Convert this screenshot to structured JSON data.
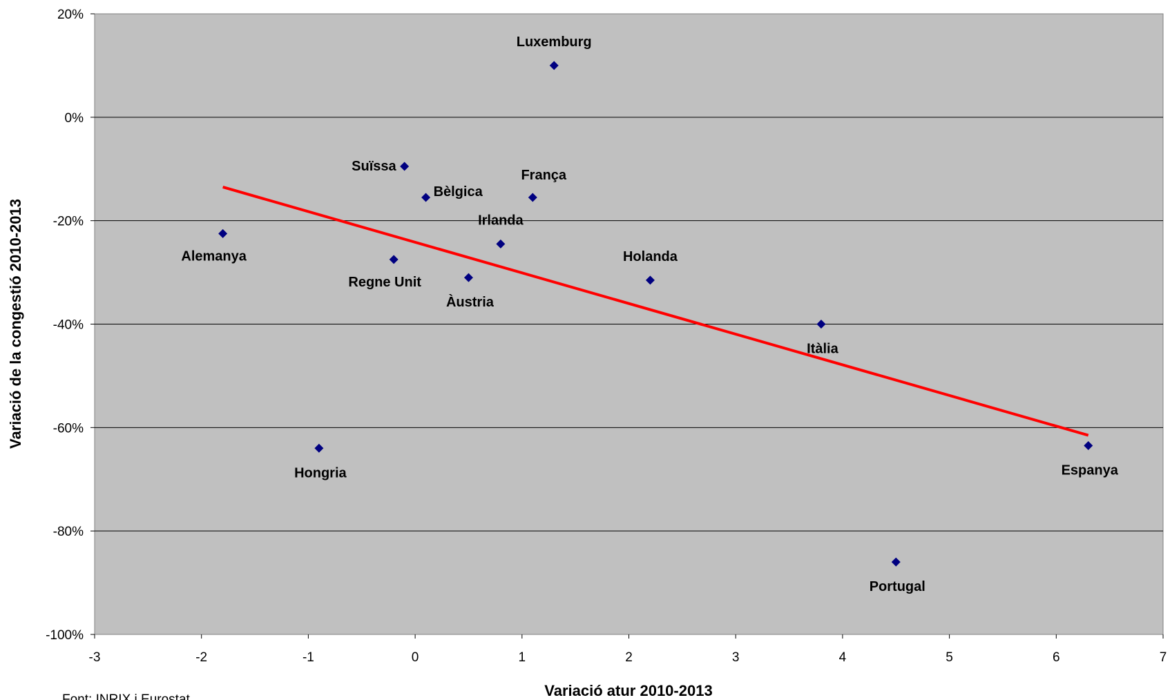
{
  "chart_data": {
    "type": "scatter",
    "xlabel": "Variació atur 2010-2013",
    "ylabel": "Variació de la congestió 2010-2013",
    "xlim": [
      -3,
      7
    ],
    "ylim": [
      -100,
      20
    ],
    "x_ticks": [
      -3,
      -2,
      -1,
      0,
      1,
      2,
      3,
      4,
      5,
      6,
      7
    ],
    "y_ticks": [
      20,
      0,
      -20,
      -40,
      -60,
      -80,
      -100
    ],
    "y_tick_labels": [
      "20%",
      "0%",
      "-20%",
      "-40%",
      "-60%",
      "-80%",
      "-100%"
    ],
    "grid": "horizontal",
    "plot_background": "#c0c0c0",
    "marker_color": "#000080",
    "trendline_color": "#ff0000",
    "points": [
      {
        "label": "Luxemburg",
        "x": 1.3,
        "y": 10
      },
      {
        "label": "Suïssa",
        "x": -0.1,
        "y": -9.5
      },
      {
        "label": "Bèlgica",
        "x": 0.1,
        "y": -15.5
      },
      {
        "label": "França",
        "x": 1.1,
        "y": -15.5
      },
      {
        "label": "Alemanya",
        "x": -1.8,
        "y": -22.5
      },
      {
        "label": "Irlanda",
        "x": 0.8,
        "y": -24.5
      },
      {
        "label": "Regne Unit",
        "x": -0.2,
        "y": -27.5
      },
      {
        "label": "Àustria",
        "x": 0.5,
        "y": -31
      },
      {
        "label": "Holanda",
        "x": 2.2,
        "y": -31.5
      },
      {
        "label": "Itàlia",
        "x": 3.8,
        "y": -40
      },
      {
        "label": "Hongria",
        "x": -0.9,
        "y": -64
      },
      {
        "label": "Espanya",
        "x": 6.3,
        "y": -63.5
      },
      {
        "label": "Portugal",
        "x": 4.5,
        "y": -86
      }
    ],
    "trendline": {
      "x": [
        -1.8,
        6.3
      ],
      "y": [
        -13.5,
        -61.5
      ]
    }
  },
  "source": "Font: INRIX i Eurostat"
}
